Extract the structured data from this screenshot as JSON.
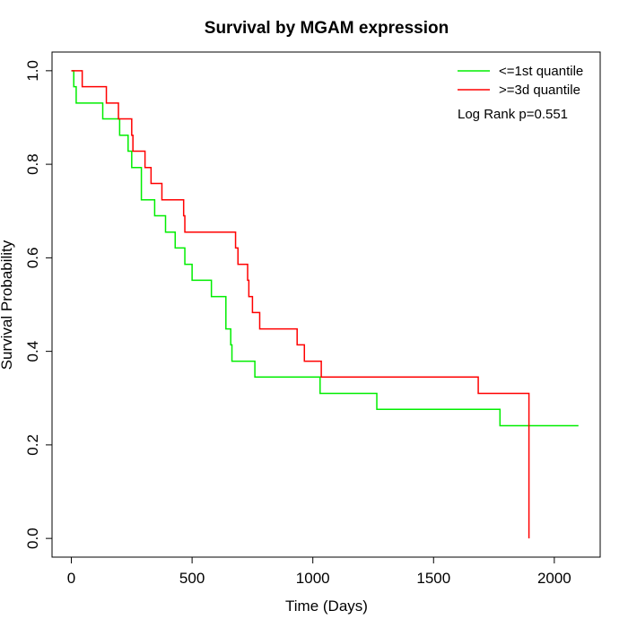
{
  "chart_data": {
    "type": "line",
    "title": "Survival by MGAM expression",
    "xlabel": "Time (Days)",
    "ylabel": "Survival Probability",
    "xlim": [
      -80,
      2190
    ],
    "ylim": [
      -0.04,
      1.04
    ],
    "xticks": [
      0,
      500,
      1000,
      1500,
      2000
    ],
    "yticks": [
      0.0,
      0.2,
      0.4,
      0.6,
      0.8,
      1.0
    ],
    "xtick_labels": [
      "0",
      "500",
      "1000",
      "1500",
      "2000"
    ],
    "ytick_labels": [
      "0.0",
      "0.2",
      "0.4",
      "0.6",
      "0.8",
      "1.0"
    ],
    "grid": false,
    "legend_position": "top-right",
    "annotation": "Log Rank p=0.551",
    "series": [
      {
        "name": "<=1st quantile",
        "color": "#00ee00",
        "step": true,
        "x": [
          0,
          10,
          20,
          130,
          200,
          235,
          250,
          290,
          345,
          390,
          430,
          470,
          500,
          580,
          640,
          650,
          660,
          665,
          760,
          1030,
          1265,
          1775,
          2100
        ],
        "y": [
          1.0,
          0.966,
          0.931,
          0.897,
          0.862,
          0.828,
          0.793,
          0.724,
          0.69,
          0.655,
          0.621,
          0.586,
          0.552,
          0.517,
          0.448,
          0.448,
          0.414,
          0.379,
          0.345,
          0.31,
          0.276,
          0.241,
          0.241
        ]
      },
      {
        "name": ">=3d quantile",
        "color": "#ff0000",
        "step": true,
        "x": [
          0,
          45,
          145,
          195,
          250,
          255,
          305,
          330,
          375,
          465,
          470,
          680,
          690,
          720,
          730,
          735,
          750,
          780,
          935,
          965,
          1035,
          1685,
          1880,
          1895
        ],
        "y": [
          1.0,
          0.966,
          0.931,
          0.897,
          0.862,
          0.828,
          0.793,
          0.759,
          0.724,
          0.69,
          0.655,
          0.621,
          0.586,
          0.586,
          0.552,
          0.517,
          0.483,
          0.448,
          0.414,
          0.379,
          0.345,
          0.31,
          0.31,
          0.0
        ]
      }
    ]
  }
}
